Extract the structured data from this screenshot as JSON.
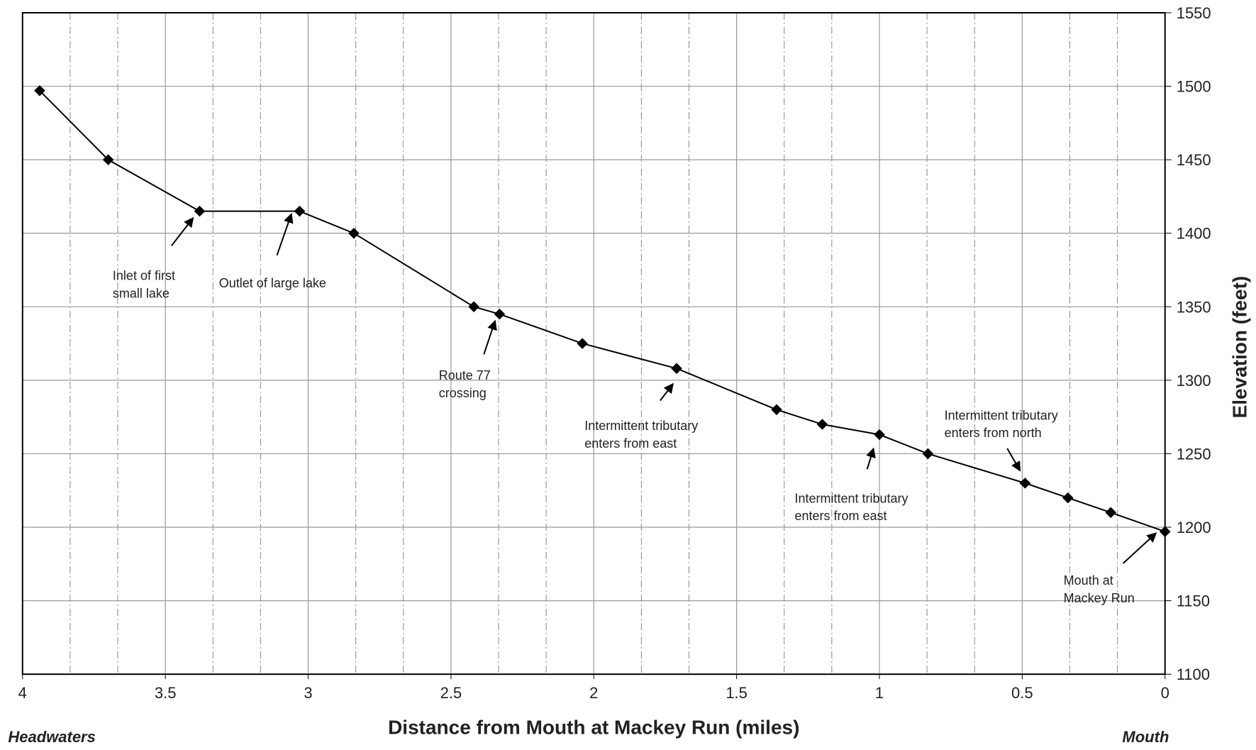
{
  "chart_data": {
    "type": "line",
    "xlabel": "Distance from Mouth at Mackey Run (miles)",
    "ylabel": "Elevation (feet)",
    "left_note": "Headwaters",
    "right_note": "Mouth",
    "x": [
      3.94,
      3.7,
      3.38,
      3.03,
      2.84,
      2.42,
      2.33,
      2.04,
      1.71,
      1.36,
      1.2,
      1.0,
      0.83,
      0.49,
      0.34,
      0.19,
      0
    ],
    "series": [
      {
        "name": "Elevation",
        "color": "#000000",
        "values": [
          1497,
          1450,
          1415,
          1415,
          1400,
          1350,
          1345,
          1325,
          1308,
          1280,
          1270,
          1263,
          1250,
          1230,
          1220,
          1210,
          1197
        ]
      }
    ],
    "xlim": [
      4,
      0
    ],
    "xticks": [
      4,
      3.5,
      3,
      2.5,
      2,
      1.5,
      1,
      0.5,
      0
    ],
    "xminorticks": [
      3.8333,
      3.6667,
      3.3333,
      3.1667,
      2.8333,
      2.6667,
      2.3333,
      2.1667,
      1.8333,
      1.6667,
      1.3333,
      1.1667,
      0.8333,
      0.6667,
      0.3333,
      0.1667
    ],
    "ylim": [
      1100,
      1550
    ],
    "yticks": [
      1100,
      1150,
      1200,
      1250,
      1300,
      1350,
      1400,
      1450,
      1500,
      1550
    ],
    "y_axis_side": "right",
    "grid": true,
    "annotations": [
      {
        "lines": [
          "Inlet of first",
          "small lake"
        ]
      },
      {
        "lines": [
          "Outlet of large lake"
        ]
      },
      {
        "lines": [
          "Route 77",
          "crossing"
        ]
      },
      {
        "lines": [
          "Intermittent tributary",
          "enters from east"
        ]
      },
      {
        "lines": [
          "Intermittent tributary",
          "enters from east"
        ]
      },
      {
        "lines": [
          "Intermittent tributary",
          "enters from north"
        ]
      },
      {
        "lines": [
          "Mouth at",
          "Mackey Run"
        ]
      }
    ]
  }
}
